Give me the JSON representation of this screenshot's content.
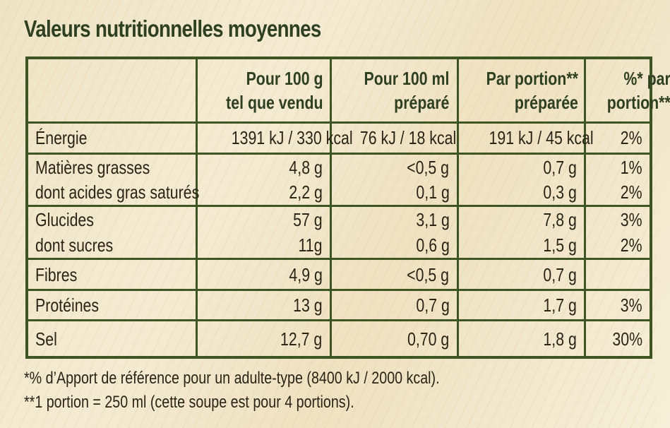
{
  "title": "Valeurs nutritionnelles moyennes",
  "headers": {
    "col1": [
      "Pour 100 g",
      "tel que vendu"
    ],
    "col2": [
      "Pour 100 ml",
      "préparé"
    ],
    "col3": [
      "Par portion**",
      "préparée"
    ],
    "col4": [
      "%* par",
      "portion**"
    ]
  },
  "rows": {
    "energie": {
      "label": "Énergie",
      "c1": "1391 kJ / 330 kcal",
      "c2": "76 kJ / 18 kcal",
      "c3": "191 kJ / 45 kcal",
      "c4": "2%"
    },
    "matieres": {
      "label": "Matières grasses",
      "c1": "4,8 g",
      "c2": "<0,5 g",
      "c3": "0,7 g",
      "c4": "1%"
    },
    "satures": {
      "label": "dont acides gras saturés",
      "c1": "2,2 g",
      "c2": "0,1 g",
      "c3": "0,3 g",
      "c4": "2%"
    },
    "glucides": {
      "label": "Glucides",
      "c1": "57 g",
      "c2": "3,1 g",
      "c3": "7,8 g",
      "c4": "3%"
    },
    "sucres": {
      "label": "dont sucres",
      "c1": "11g",
      "c2": "0,6 g",
      "c3": "1,5 g",
      "c4": "2%"
    },
    "fibres": {
      "label": "Fibres",
      "c1": "4,9 g",
      "c2": "<0,5 g",
      "c3": "0,7 g",
      "c4": ""
    },
    "proteines": {
      "label": "Protéines",
      "c1": "13 g",
      "c2": "0,7 g",
      "c3": "1,7 g",
      "c4": "3%"
    },
    "sel": {
      "label": "Sel",
      "c1": "12,7 g",
      "c2": "0,70 g",
      "c3": "1,8 g",
      "c4": "30%"
    }
  },
  "footnotes": {
    "ref": "*% d’Apport de référence pour un adulte-type (8400 kJ / 2000 kcal).",
    "portion": "**1 portion = 250 ml (cette soupe est pour 4 portions)."
  }
}
